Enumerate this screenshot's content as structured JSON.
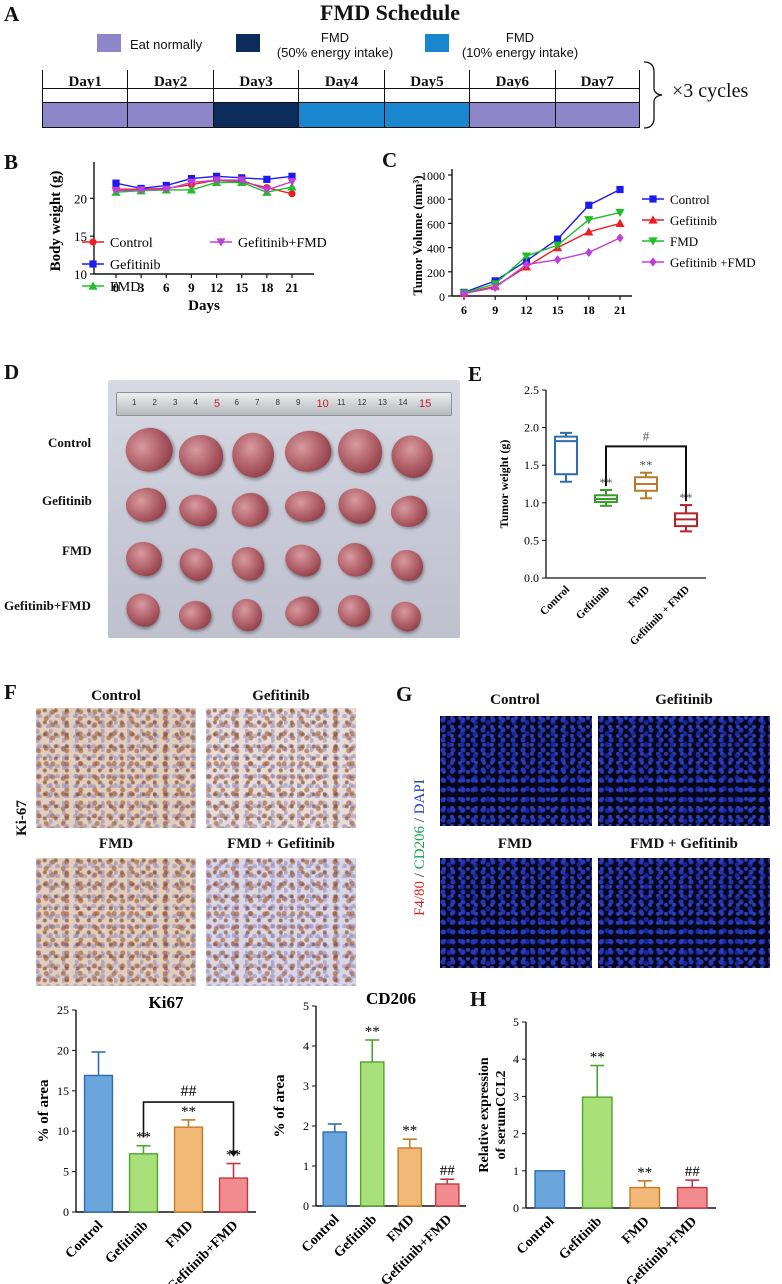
{
  "panels": {
    "A": "A",
    "B": "B",
    "C": "C",
    "D": "D",
    "E": "E",
    "F": "F",
    "G": "G",
    "H": "H"
  },
  "schedule": {
    "title": "FMD Schedule",
    "legend": [
      {
        "label": "Eat normally",
        "color": "#8d86c9"
      },
      {
        "label": "FMD",
        "sub": "(50% energy intake)",
        "color": "#0c2d5c"
      },
      {
        "label": "FMD",
        "sub": "(10% energy intake)",
        "color": "#1a86cf"
      }
    ],
    "days": [
      "Day1",
      "Day2",
      "Day3",
      "Day4",
      "Day5",
      "Day6",
      "Day7"
    ],
    "day_colors": [
      "#8d86c9",
      "#8d86c9",
      "#0c2d5c",
      "#1a86cf",
      "#1a86cf",
      "#8d86c9",
      "#8d86c9"
    ],
    "cycles": "×3 cycles"
  },
  "chart_data": [
    {
      "id": "B",
      "type": "line",
      "ylabel": "Body weight (g)",
      "xlabel": "Days",
      "x": [
        0,
        3,
        6,
        9,
        12,
        15,
        18,
        21
      ],
      "ylim": [
        10,
        24
      ],
      "yticks": [
        10,
        15,
        20
      ],
      "series": [
        {
          "name": "Control",
          "color": "#ee1c24",
          "marker": "circle",
          "values": [
            21.2,
            21.2,
            21.3,
            21.8,
            22.4,
            22.2,
            21.4,
            20.6
          ]
        },
        {
          "name": "Gefitinib",
          "color": "#1b1bf0",
          "marker": "square",
          "values": [
            22.0,
            21.3,
            21.7,
            22.6,
            22.9,
            22.7,
            22.5,
            22.9
          ]
        },
        {
          "name": "FMD",
          "color": "#1fbf2a",
          "marker": "triangle",
          "values": [
            20.8,
            21.0,
            21.1,
            21.1,
            22.1,
            22.1,
            20.8,
            21.5
          ]
        },
        {
          "name": "Gefitinib+FMD",
          "color": "#c03fd8",
          "marker": "triangle-down",
          "values": [
            21.0,
            21.1,
            21.2,
            22.1,
            22.4,
            22.4,
            21.1,
            22.2
          ]
        }
      ]
    },
    {
      "id": "C",
      "type": "line",
      "ylabel": "Tumor Volume (mm³)",
      "xlabel": "Days",
      "x": [
        6,
        9,
        12,
        15,
        18,
        21
      ],
      "ylim": [
        0,
        1000
      ],
      "yticks": [
        0,
        200,
        400,
        600,
        800,
        1000
      ],
      "series": [
        {
          "name": "Control",
          "color": "#1b1bf0",
          "marker": "square",
          "values": [
            30,
            125,
            290,
            470,
            750,
            880
          ]
        },
        {
          "name": "Gefitinib",
          "color": "#ee1c24",
          "marker": "triangle",
          "values": [
            20,
            80,
            240,
            400,
            530,
            600
          ]
        },
        {
          "name": "FMD",
          "color": "#1fbf2a",
          "marker": "triangle-down",
          "values": [
            25,
            100,
            330,
            420,
            630,
            690
          ]
        },
        {
          "name": "Gefitinib +FMD",
          "color": "#c03fd8",
          "marker": "diamond",
          "values": [
            20,
            70,
            260,
            300,
            360,
            480
          ]
        }
      ]
    },
    {
      "id": "E",
      "type": "box",
      "ylabel": "Tumor weight (g)",
      "categories": [
        "Control",
        "Gefitinib",
        "FMD",
        "Gefitinib + FMD"
      ],
      "colors": [
        "#2e6cb0",
        "#3a9a2a",
        "#b87a2a",
        "#b8232a"
      ],
      "ylim": [
        0,
        2.5
      ],
      "yticks": [
        "0.0",
        "0.5",
        "1.0",
        "1.5",
        "2.0",
        "2.5"
      ],
      "boxes": [
        {
          "min": 1.28,
          "q1": 1.38,
          "median": 1.82,
          "q3": 1.88,
          "max": 1.93
        },
        {
          "min": 0.96,
          "q1": 1.01,
          "median": 1.05,
          "q3": 1.1,
          "max": 1.17
        },
        {
          "min": 1.06,
          "q1": 1.16,
          "median": 1.25,
          "q3": 1.34,
          "max": 1.4
        },
        {
          "min": 0.62,
          "q1": 0.69,
          "median": 0.78,
          "q3": 0.86,
          "max": 0.97
        }
      ],
      "sig": [
        "",
        "**",
        "**",
        "**"
      ],
      "bracket": {
        "from": 1,
        "to": 3,
        "label": "#"
      }
    },
    {
      "id": "Ki67",
      "type": "bar",
      "title": "Ki67",
      "ylabel": "% of area",
      "categories": [
        "Control",
        "Gefitinib",
        "FMD",
        "Gefitinib+FMD"
      ],
      "colors": [
        "#6aa5dc",
        "#a9e07a",
        "#f2b877",
        "#f28b8f"
      ],
      "values": [
        16.9,
        7.2,
        10.5,
        4.2
      ],
      "errors": [
        2.9,
        1.0,
        0.9,
        1.8
      ],
      "ylim": [
        0,
        25
      ],
      "yticks": [
        "0",
        "5",
        "10",
        "15",
        "20",
        "25"
      ],
      "sig": [
        "",
        "**",
        "**",
        "**"
      ],
      "bracket": {
        "from": 1,
        "to": 3,
        "label": "##"
      }
    },
    {
      "id": "CD206",
      "type": "bar",
      "title": "CD206",
      "ylabel": "% of area",
      "categories": [
        "Control",
        "Gefitinib",
        "FMD",
        "Gefitinib+FMD"
      ],
      "colors": [
        "#6aa5dc",
        "#a9e07a",
        "#f2b877",
        "#f28b8f"
      ],
      "values": [
        1.85,
        3.6,
        1.45,
        0.55
      ],
      "errors": [
        0.2,
        0.55,
        0.22,
        0.12
      ],
      "ylim": [
        0,
        5
      ],
      "yticks": [
        "0",
        "1",
        "2",
        "3",
        "4",
        "5"
      ],
      "sig": [
        "",
        "**",
        "**",
        "##"
      ]
    },
    {
      "id": "H",
      "type": "bar",
      "ylabel": "Relative expression of serumCCL2",
      "ylabel_lines": [
        "Relative expression",
        "of serumCCL2"
      ],
      "categories": [
        "Control",
        "Gefitinib",
        "FMD",
        "Gefitinib+FMD"
      ],
      "colors": [
        "#6aa5dc",
        "#a9e07a",
        "#f2b877",
        "#f28b8f"
      ],
      "values": [
        1.0,
        2.98,
        0.55,
        0.55
      ],
      "errors": [
        0,
        0.85,
        0.18,
        0.2
      ],
      "ylim": [
        0,
        5
      ],
      "yticks": [
        "0",
        "1",
        "2",
        "3",
        "4",
        "5"
      ],
      "sig": [
        "",
        "**",
        "**",
        "##"
      ]
    }
  ],
  "photo": {
    "rows": [
      "Control",
      "Gefitinib",
      "FMD",
      "Gefitinib+FMD"
    ],
    "ruler_numbers": [
      "1",
      "2",
      "3",
      "4",
      "5",
      "6",
      "7",
      "8",
      "9",
      "10",
      "11",
      "12",
      "13",
      "14",
      "15"
    ]
  },
  "ihc": {
    "side_label": "Ki-67",
    "labels": [
      "Control",
      "Gefitinib",
      "FMD",
      "FMD + Gefitinib"
    ]
  },
  "fluor": {
    "side_label_parts": [
      {
        "text": "F4/80",
        "color": "#e02020"
      },
      {
        "text": " / ",
        "color": "#222222"
      },
      {
        "text": "CD206",
        "color": "#13a34a"
      },
      {
        "text": " / ",
        "color": "#222222"
      },
      {
        "text": "DAPI",
        "color": "#1f3fbf"
      }
    ],
    "labels": [
      "Control",
      "Gefitinib",
      "FMD",
      "FMD + Gefitinib"
    ]
  }
}
